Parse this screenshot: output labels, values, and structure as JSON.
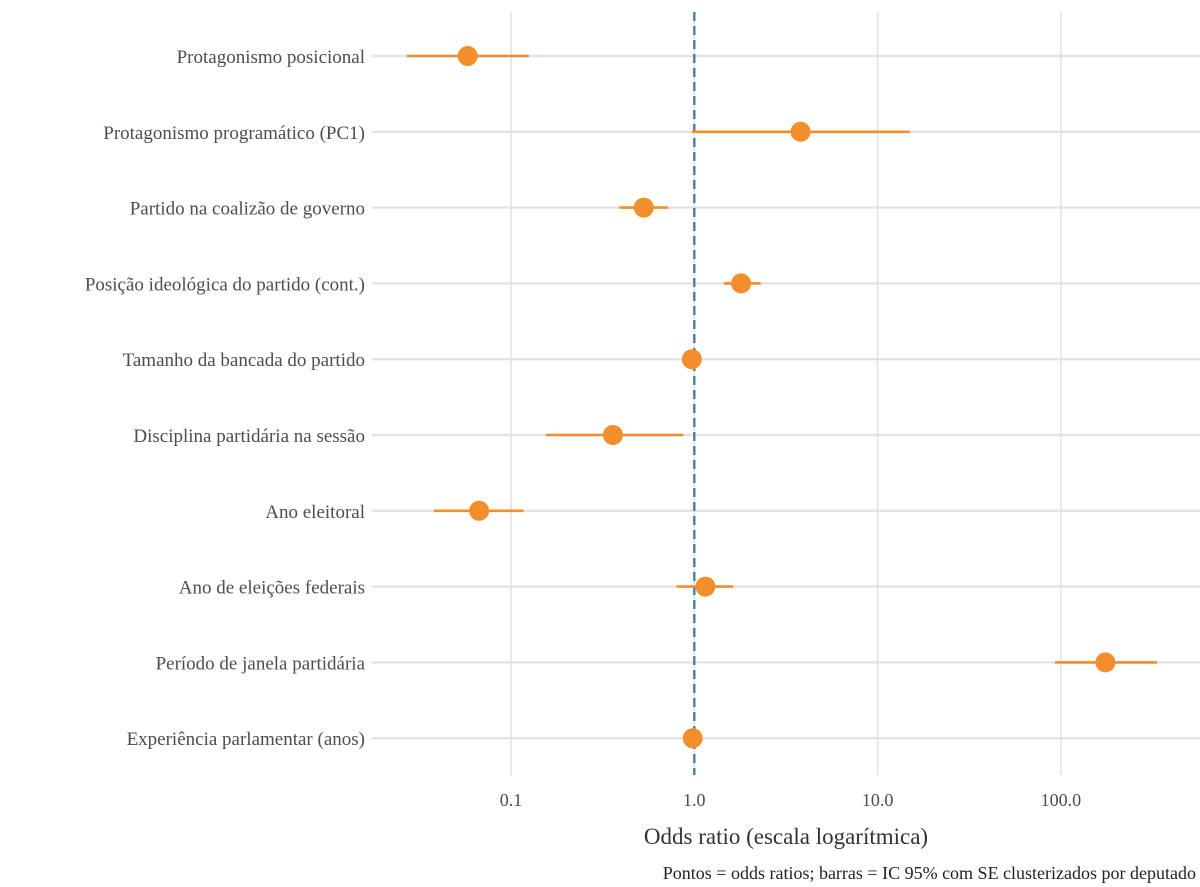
{
  "chart_data": {
    "type": "forest",
    "scale": "log",
    "xlabel": "Odds ratio (escala logarítmica)",
    "caption": "Pontos = odds ratios; barras = IC 95% com SE clusterizados por deputado",
    "x_ticks": [
      0.1,
      1.0,
      10.0,
      100.0
    ],
    "x_tick_labels": [
      "0.1",
      "1.0",
      "10.0",
      "100.0"
    ],
    "xlim": [
      0.022,
      450
    ],
    "reference_line": 1.0,
    "grid": true,
    "colors": {
      "point": "#f28e2b",
      "reference": "#4a7fa5",
      "grid": "#e3e3e3",
      "text": "#4d4d4d"
    },
    "rows": [
      {
        "label": "Protagonismo posicional",
        "or": 0.058,
        "lo": 0.027,
        "hi": 0.125
      },
      {
        "label": "Protagonismo programático (PC1)",
        "or": 3.8,
        "lo": 0.97,
        "hi": 15.0
      },
      {
        "label": "Partido na coalizão de governo",
        "or": 0.53,
        "lo": 0.39,
        "hi": 0.72
      },
      {
        "label": "Posição ideológica do partido (cont.)",
        "or": 1.8,
        "lo": 1.45,
        "hi": 2.3
      },
      {
        "label": "Tamanho da bancada do partido",
        "or": 0.97,
        "lo": 0.95,
        "hi": 0.99
      },
      {
        "label": "Disciplina partidária na sessão",
        "or": 0.36,
        "lo": 0.155,
        "hi": 0.87
      },
      {
        "label": "Ano eleitoral",
        "or": 0.067,
        "lo": 0.038,
        "hi": 0.117
      },
      {
        "label": "Ano de eleições federais",
        "or": 1.15,
        "lo": 0.8,
        "hi": 1.63
      },
      {
        "label": "Período de janela partidária",
        "or": 175,
        "lo": 93,
        "hi": 335
      },
      {
        "label": "Experiência parlamentar (anos)",
        "or": 0.98,
        "lo": 0.96,
        "hi": 1.0
      }
    ]
  }
}
